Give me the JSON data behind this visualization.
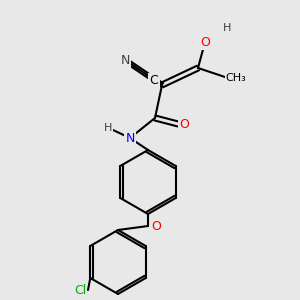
{
  "bg_color": "#e8e8e8",
  "bond_color": "#000000",
  "bond_lw": 1.5,
  "atom_colors": {
    "N": "#0000ff",
    "O": "#ff0000",
    "Cl": "#00aa00",
    "C": "#000000",
    "H": "#404040"
  },
  "font_size": 9,
  "font_size_small": 8
}
